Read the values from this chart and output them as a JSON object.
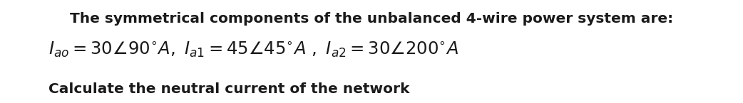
{
  "title": "The symmetrical components of the unbalanced 4-wire power system are:",
  "line2": "$\\mathit{I}_{ao} = 30\\angle90^{\\circ}\\mathit{A},\\ \\mathit{I}_{a1} = 45\\angle45^{\\circ}\\mathit{A}\\ ,\\ \\mathit{I}_{a2} = 30\\angle200^{\\circ}\\mathit{A}$",
  "line3": "Calculate the neutral current of the network",
  "bg_color": "#ffffff",
  "text_color": "#1a1a1a",
  "title_fontsize": 14.5,
  "eq_fontsize": 17.5,
  "body_fontsize": 14.5,
  "figwidth": 10.42,
  "figheight": 1.45,
  "dpi": 100
}
